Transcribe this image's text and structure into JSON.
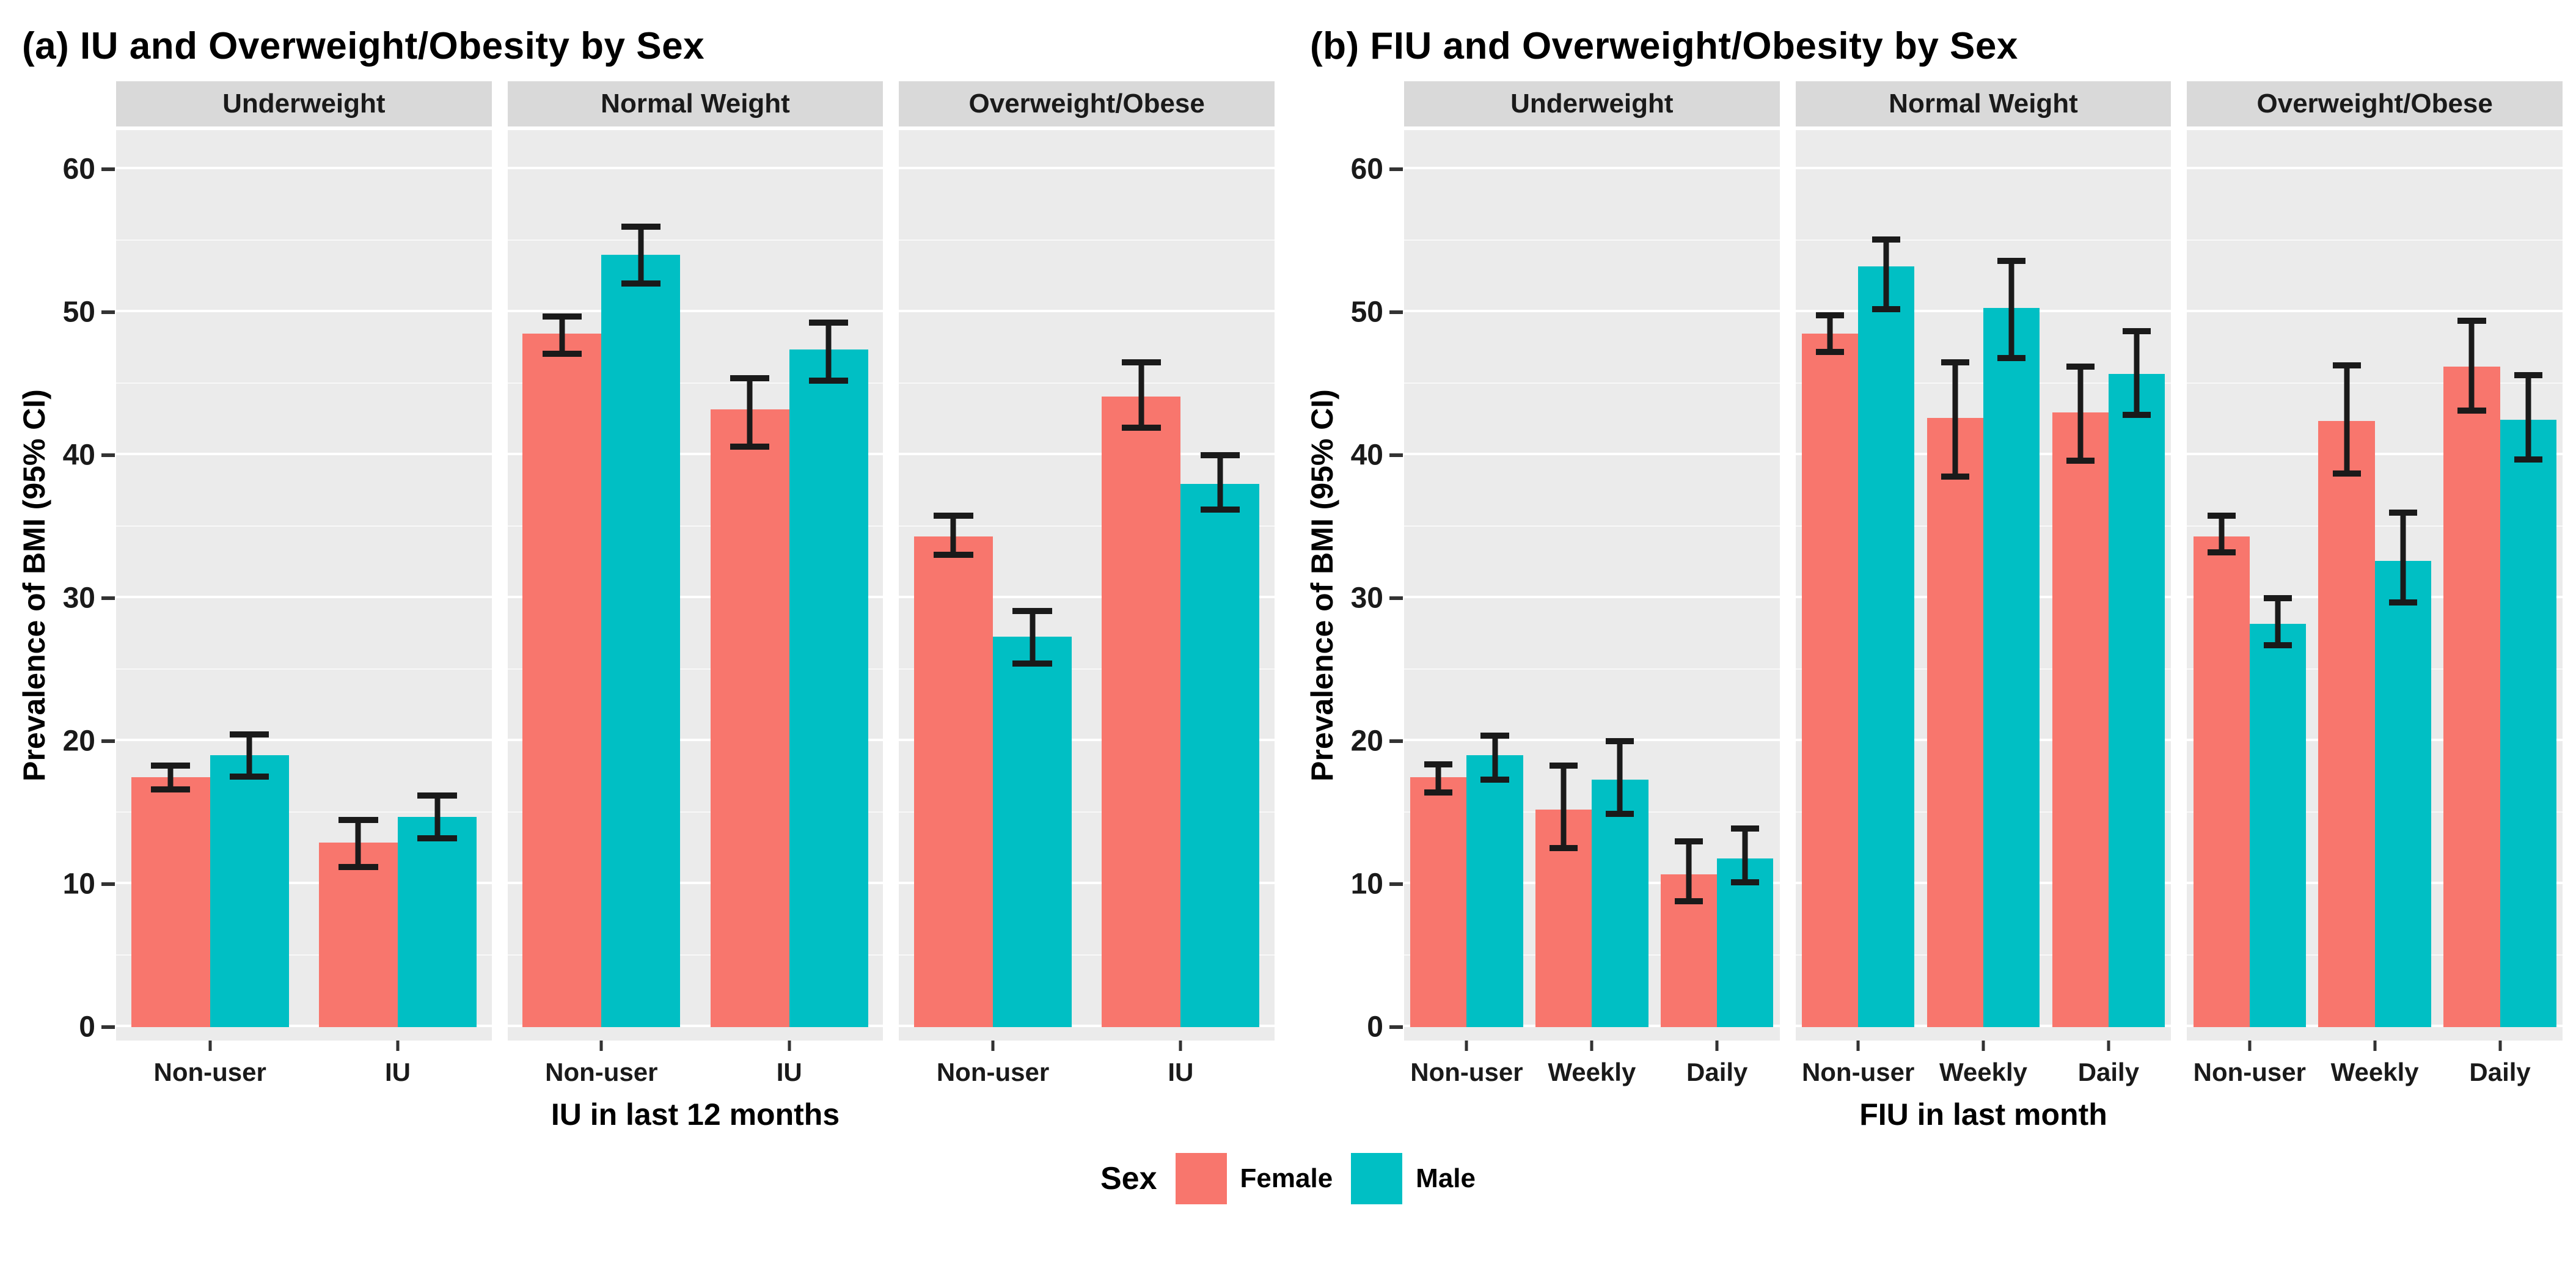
{
  "legend": {
    "title": "Sex",
    "items": [
      {
        "label": "Female",
        "color": "#F8766D"
      },
      {
        "label": "Male",
        "color": "#00BFC4"
      }
    ]
  },
  "colors": {
    "female_bar": "#F8766D",
    "male_bar": "#00BFC4",
    "panel_background": "#EBEBEB",
    "strip_background": "#D9D9D9",
    "gridline": "#FFFFFF",
    "error_bar": "#1A1A1A"
  },
  "y_axis": {
    "title": "Prevalence of BMI (95% CI)",
    "ticks": [
      0,
      10,
      20,
      30,
      40,
      50,
      60
    ]
  },
  "chart_data": [
    {
      "type": "bar",
      "title": "(a) IU and Overweight/Obesity by Sex",
      "xlabel": "IU in last 12 months",
      "ylabel": "Prevalence of BMI (95% CI)",
      "ylim": [
        0,
        60
      ],
      "grid": true,
      "legend_position": "bottom",
      "facets": [
        {
          "label": "Underweight",
          "categories": [
            "Non-user",
            "IU"
          ],
          "series": [
            {
              "name": "Female",
              "values": [
                17.5,
                12.9
              ],
              "ci_low": [
                16.4,
                11.0
              ],
              "ci_high": [
                18.5,
                14.7
              ]
            },
            {
              "name": "Male",
              "values": [
                19.0,
                14.7
              ],
              "ci_low": [
                17.3,
                13.0
              ],
              "ci_high": [
                20.7,
                16.4
              ]
            }
          ]
        },
        {
          "label": "Normal Weight",
          "categories": [
            "Non-user",
            "IU"
          ],
          "series": [
            {
              "name": "Female",
              "values": [
                48.5,
                43.2
              ],
              "ci_low": [
                46.9,
                40.4
              ],
              "ci_high": [
                49.9,
                45.6
              ]
            },
            {
              "name": "Male",
              "values": [
                54.0,
                47.4
              ],
              "ci_low": [
                51.8,
                45.0
              ],
              "ci_high": [
                56.2,
                49.5
              ]
            }
          ]
        },
        {
          "label": "Overweight/Obese",
          "categories": [
            "Non-user",
            "IU"
          ],
          "series": [
            {
              "name": "Female",
              "values": [
                34.3,
                44.1
              ],
              "ci_low": [
                32.8,
                41.7
              ],
              "ci_high": [
                36.0,
                46.7
              ]
            },
            {
              "name": "Male",
              "values": [
                27.3,
                38.0
              ],
              "ci_low": [
                25.2,
                36.0
              ],
              "ci_high": [
                29.3,
                40.2
              ]
            }
          ]
        }
      ]
    },
    {
      "type": "bar",
      "title": "(b) FIU and Overweight/Obesity by Sex",
      "xlabel": "FIU in last month",
      "ylabel": "Prevalence of BMI (95% CI)",
      "ylim": [
        0,
        60
      ],
      "grid": true,
      "legend_position": "bottom",
      "facets": [
        {
          "label": "Underweight",
          "categories": [
            "Non-user",
            "Weekly",
            "Daily"
          ],
          "series": [
            {
              "name": "Female",
              "values": [
                17.5,
                15.2,
                10.7
              ],
              "ci_low": [
                16.2,
                12.3,
                8.6
              ],
              "ci_high": [
                18.6,
                18.5,
                13.2
              ]
            },
            {
              "name": "Male",
              "values": [
                19.0,
                17.3,
                11.8
              ],
              "ci_low": [
                17.1,
                14.7,
                9.9
              ],
              "ci_high": [
                20.6,
                20.2,
                14.1
              ]
            }
          ]
        },
        {
          "label": "Normal Weight",
          "categories": [
            "Non-user",
            "Weekly",
            "Daily"
          ],
          "series": [
            {
              "name": "Female",
              "values": [
                48.5,
                42.6,
                43.0
              ],
              "ci_low": [
                47.0,
                38.3,
                39.4
              ],
              "ci_high": [
                50.0,
                46.7,
                46.4
              ]
            },
            {
              "name": "Male",
              "values": [
                53.2,
                50.3,
                45.7
              ],
              "ci_low": [
                50.0,
                46.6,
                42.6
              ],
              "ci_high": [
                55.3,
                53.8,
                48.9
              ]
            }
          ]
        },
        {
          "label": "Overweight/Obese",
          "categories": [
            "Non-user",
            "Weekly",
            "Daily"
          ],
          "series": [
            {
              "name": "Female",
              "values": [
                34.3,
                42.4,
                46.2
              ],
              "ci_low": [
                33.0,
                38.5,
                42.9
              ],
              "ci_high": [
                36.0,
                46.5,
                49.6
              ]
            },
            {
              "name": "Male",
              "values": [
                28.2,
                32.6,
                42.5
              ],
              "ci_low": [
                26.5,
                29.5,
                39.5
              ],
              "ci_high": [
                30.2,
                36.2,
                45.8
              ]
            }
          ]
        }
      ]
    }
  ]
}
